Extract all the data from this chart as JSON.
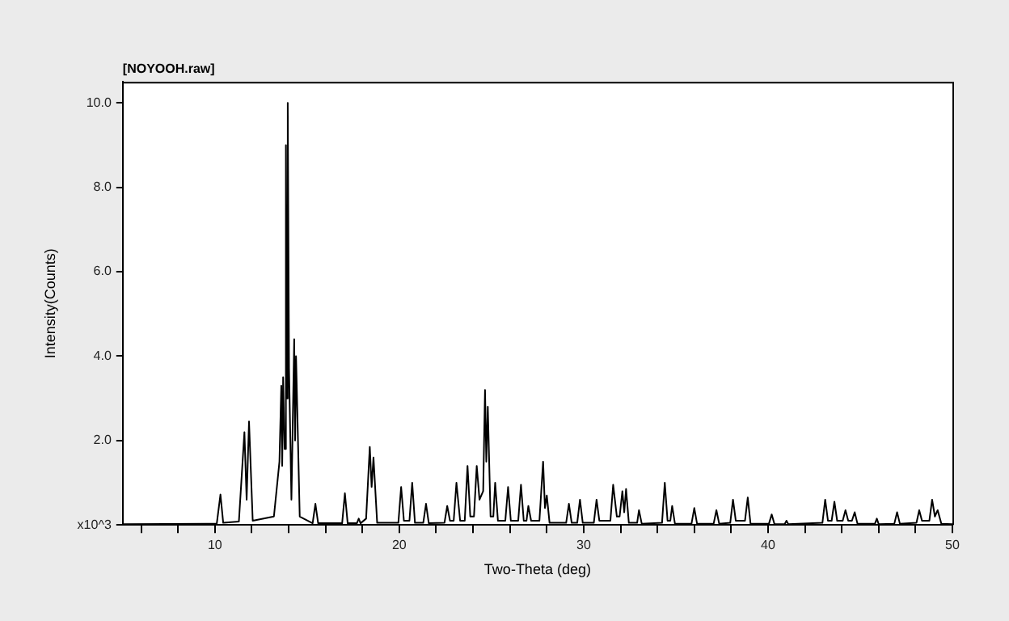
{
  "chart_data": {
    "type": "line",
    "title": "[NOYOOH.raw]",
    "xlabel": "Two-Theta (deg)",
    "ylabel": "Intensity(Counts)",
    "xlim": [
      5,
      50
    ],
    "xticks": [
      {
        "value": 6,
        "label": null
      },
      {
        "value": 8,
        "label": null
      },
      10,
      {
        "value": 12,
        "label": null
      },
      {
        "value": 14,
        "label": null
      },
      {
        "value": 16,
        "label": null
      },
      {
        "value": 18,
        "label": null
      },
      20,
      {
        "value": 22,
        "label": null
      },
      {
        "value": 24,
        "label": null
      },
      {
        "value": 26,
        "label": null
      },
      {
        "value": 28,
        "label": null
      },
      30,
      {
        "value": 32,
        "label": null
      },
      {
        "value": 34,
        "label": null
      },
      {
        "value": 36,
        "label": null
      },
      {
        "value": 38,
        "label": null
      },
      40,
      {
        "value": 42,
        "label": null
      },
      {
        "value": 44,
        "label": null
      },
      {
        "value": 46,
        "label": null
      },
      {
        "value": 48,
        "label": null
      },
      50
    ],
    "ylim": [
      0,
      10.5
    ],
    "yticks": [
      {
        "value": 0,
        "label": "x10^3"
      },
      {
        "value": 2,
        "label": "2.0"
      },
      {
        "value": 4,
        "label": "4.0"
      },
      {
        "value": 6,
        "label": "6.0"
      },
      {
        "value": 8,
        "label": "8.0"
      },
      {
        "value": 10,
        "label": "10.0"
      }
    ],
    "grid": false,
    "legend": false,
    "marker": "none",
    "line_style": "solid",
    "series": [
      {
        "color": "#000000",
        "x": [
          5,
          10.1,
          10.3,
          10.45,
          11.3,
          11.6,
          11.72,
          11.85,
          12.05,
          13.2,
          13.5,
          13.6,
          13.65,
          13.7,
          13.78,
          13.85,
          13.9,
          13.95,
          14.02,
          14.15,
          14.3,
          14.35,
          14.4,
          14.6,
          15.3,
          15.45,
          15.6,
          16.9,
          17.05,
          17.2,
          17.7,
          17.8,
          17.9,
          18.2,
          18.4,
          18.5,
          18.6,
          18.8,
          19.95,
          20.1,
          20.25,
          20.55,
          20.7,
          20.85,
          21.3,
          21.45,
          21.6,
          22.45,
          22.6,
          22.75,
          22.95,
          23.1,
          23.3,
          23.55,
          23.7,
          23.85,
          24.05,
          24.2,
          24.35,
          24.55,
          24.65,
          24.72,
          24.8,
          24.95,
          25.1,
          25.2,
          25.35,
          25.75,
          25.9,
          26.05,
          26.45,
          26.6,
          26.75,
          26.9,
          27.0,
          27.15,
          27.6,
          27.8,
          27.9,
          28.0,
          28.15,
          29.05,
          29.2,
          29.35,
          29.65,
          29.8,
          29.95,
          30.55,
          30.7,
          30.85,
          31.45,
          31.6,
          31.8,
          31.95,
          32.1,
          32.2,
          32.3,
          32.45,
          32.9,
          33.0,
          33.15,
          34.25,
          34.4,
          34.55,
          34.7,
          34.8,
          34.95,
          35.85,
          36.0,
          36.15,
          37.05,
          37.2,
          37.35,
          37.95,
          38.1,
          38.25,
          38.75,
          38.9,
          39.05,
          40.05,
          40.2,
          40.35,
          40.9,
          41.0,
          41.1,
          42.95,
          43.1,
          43.25,
          43.45,
          43.6,
          43.75,
          44.05,
          44.2,
          44.35,
          44.55,
          44.7,
          44.85,
          45.8,
          45.9,
          46.0,
          46.85,
          47.0,
          47.15,
          48.05,
          48.2,
          48.35,
          48.75,
          48.9,
          49.05,
          49.2,
          49.4,
          50
        ],
        "values": [
          0.02,
          0.03,
          0.72,
          0.05,
          0.08,
          2.2,
          0.6,
          2.45,
          0.1,
          0.2,
          1.5,
          3.3,
          1.4,
          3.5,
          1.8,
          9.0,
          3.0,
          10.0,
          3.7,
          0.6,
          4.4,
          2.0,
          4.0,
          0.2,
          0.04,
          0.5,
          0.04,
          0.04,
          0.75,
          0.04,
          0.04,
          0.15,
          0.04,
          0.15,
          1.85,
          0.9,
          1.6,
          0.05,
          0.05,
          0.9,
          0.1,
          0.1,
          1.0,
          0.05,
          0.05,
          0.5,
          0.04,
          0.05,
          0.45,
          0.1,
          0.1,
          1.0,
          0.1,
          0.1,
          1.4,
          0.2,
          0.2,
          1.4,
          0.6,
          0.8,
          3.2,
          1.5,
          2.8,
          0.2,
          0.2,
          1.0,
          0.1,
          0.1,
          0.9,
          0.1,
          0.1,
          0.95,
          0.1,
          0.1,
          0.45,
          0.1,
          0.1,
          1.5,
          0.4,
          0.7,
          0.05,
          0.05,
          0.5,
          0.05,
          0.05,
          0.6,
          0.05,
          0.05,
          0.6,
          0.1,
          0.1,
          0.95,
          0.2,
          0.2,
          0.8,
          0.3,
          0.85,
          0.05,
          0.05,
          0.35,
          0.03,
          0.05,
          1.0,
          0.1,
          0.1,
          0.45,
          0.03,
          0.03,
          0.4,
          0.03,
          0.03,
          0.35,
          0.03,
          0.05,
          0.6,
          0.1,
          0.1,
          0.65,
          0.03,
          0.03,
          0.25,
          0.02,
          0.02,
          0.1,
          0.02,
          0.05,
          0.6,
          0.1,
          0.1,
          0.55,
          0.1,
          0.1,
          0.35,
          0.1,
          0.1,
          0.3,
          0.03,
          0.03,
          0.15,
          0.02,
          0.03,
          0.3,
          0.03,
          0.05,
          0.35,
          0.1,
          0.1,
          0.6,
          0.2,
          0.35,
          0.03,
          0.02
        ]
      }
    ]
  }
}
